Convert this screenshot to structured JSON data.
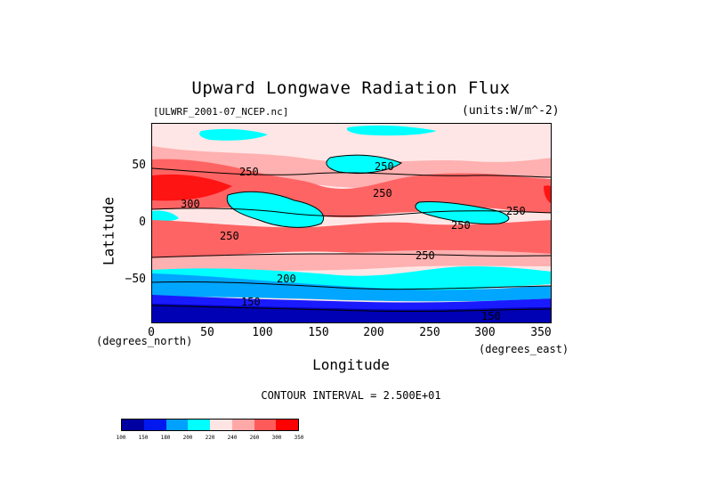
{
  "title": "Upward Longwave Radiation Flux",
  "file_label": "[ULWRF_2001-07_NCEP.nc]",
  "units_label": "(units:W/m^-2)",
  "x_axis": {
    "label": "Longitude",
    "units": "(degrees_east)",
    "ticks": [
      "0",
      "50",
      "100",
      "150",
      "200",
      "250",
      "300",
      "350"
    ],
    "range": [
      0,
      360
    ]
  },
  "y_axis": {
    "label": "Latitude",
    "units": "(degrees_north)",
    "ticks": [
      "50",
      "0",
      "−50"
    ],
    "range": [
      -90,
      90
    ]
  },
  "contour_interval": "CONTOUR INTERVAL = 2.500E+01",
  "contour_labels": [
    "250",
    "250",
    "250",
    "250",
    "250",
    "250",
    "200",
    "150",
    "150",
    "300",
    "250"
  ],
  "colorbar": {
    "levels": [
      "100",
      "150",
      "180",
      "200",
      "220",
      "240",
      "260",
      "300",
      "350"
    ],
    "colors": [
      "#0000a0",
      "#0018f0",
      "#00a0ff",
      "#00ffff",
      "#ffe4e4",
      "#ffa8a8",
      "#ff5a5a",
      "#ff0000"
    ]
  },
  "palette": {
    "deep_blue": "#0000b4",
    "blue": "#1a1aff",
    "light_blue": "#00a6ff",
    "cyan": "#00ffff",
    "pale_pink": "#ffe6e6",
    "pink": "#ffb0b0",
    "salmon": "#ff6464",
    "red": "#ff1414"
  }
}
